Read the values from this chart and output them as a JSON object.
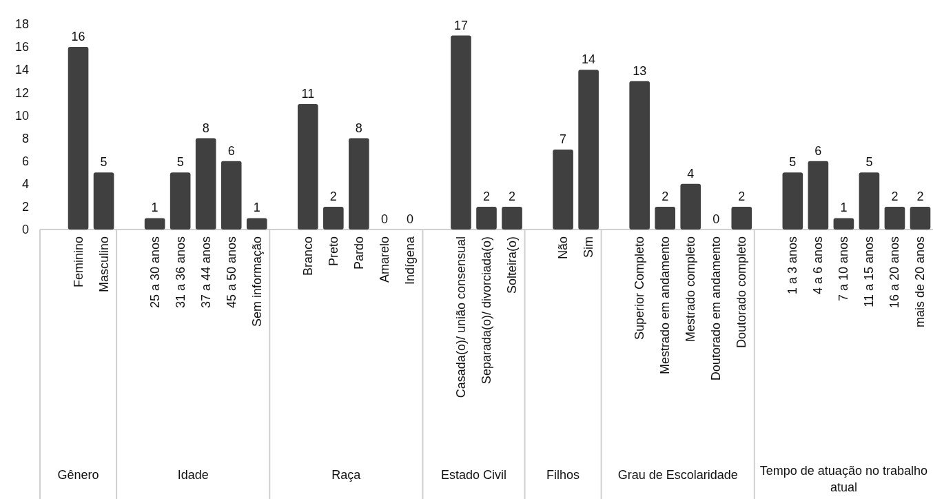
{
  "chart_data": {
    "type": "bar",
    "categories": [
      null,
      "Feminino",
      "Masculino",
      null,
      "25 a 30 anos",
      "31 a 36 anos",
      "37 a 44 anos",
      "45 a 50 anos",
      "Sem informação",
      null,
      "Branco",
      "Preto",
      "Pardo",
      "Amarelo",
      "Indígena",
      null,
      "Casada(o)/ união consensual",
      "Separada(o)/ divorciada(o)",
      "Solteira(o)",
      null,
      "Não",
      "Sim",
      null,
      "Superior Completo",
      "Mestrado em andamento",
      "Mestrado completo",
      "Doutorado em andamento",
      "Doutorado completo",
      null,
      "1 a 3 anos",
      "4 a 6 anos",
      "7 a 10 anos",
      "11 a 15 anos",
      "16 a 20 anos",
      "mais de 20 anos"
    ],
    "values": [
      null,
      16,
      5,
      null,
      1,
      5,
      8,
      6,
      1,
      null,
      11,
      2,
      8,
      0,
      0,
      null,
      17,
      2,
      2,
      null,
      7,
      14,
      null,
      13,
      2,
      4,
      0,
      2,
      null,
      5,
      6,
      1,
      5,
      2,
      2
    ],
    "color": "#404040",
    "ylim": [
      0,
      18
    ],
    "yticks": [
      0,
      2,
      4,
      6,
      8,
      10,
      12,
      14,
      16,
      18
    ],
    "data_labels": true,
    "annotations": [
      "Gênero",
      "Idade",
      "Raça",
      "Estado Civil",
      "Filhos",
      "Grau de Escolaridade",
      "Tempo de atuação no trabalho atual"
    ]
  }
}
